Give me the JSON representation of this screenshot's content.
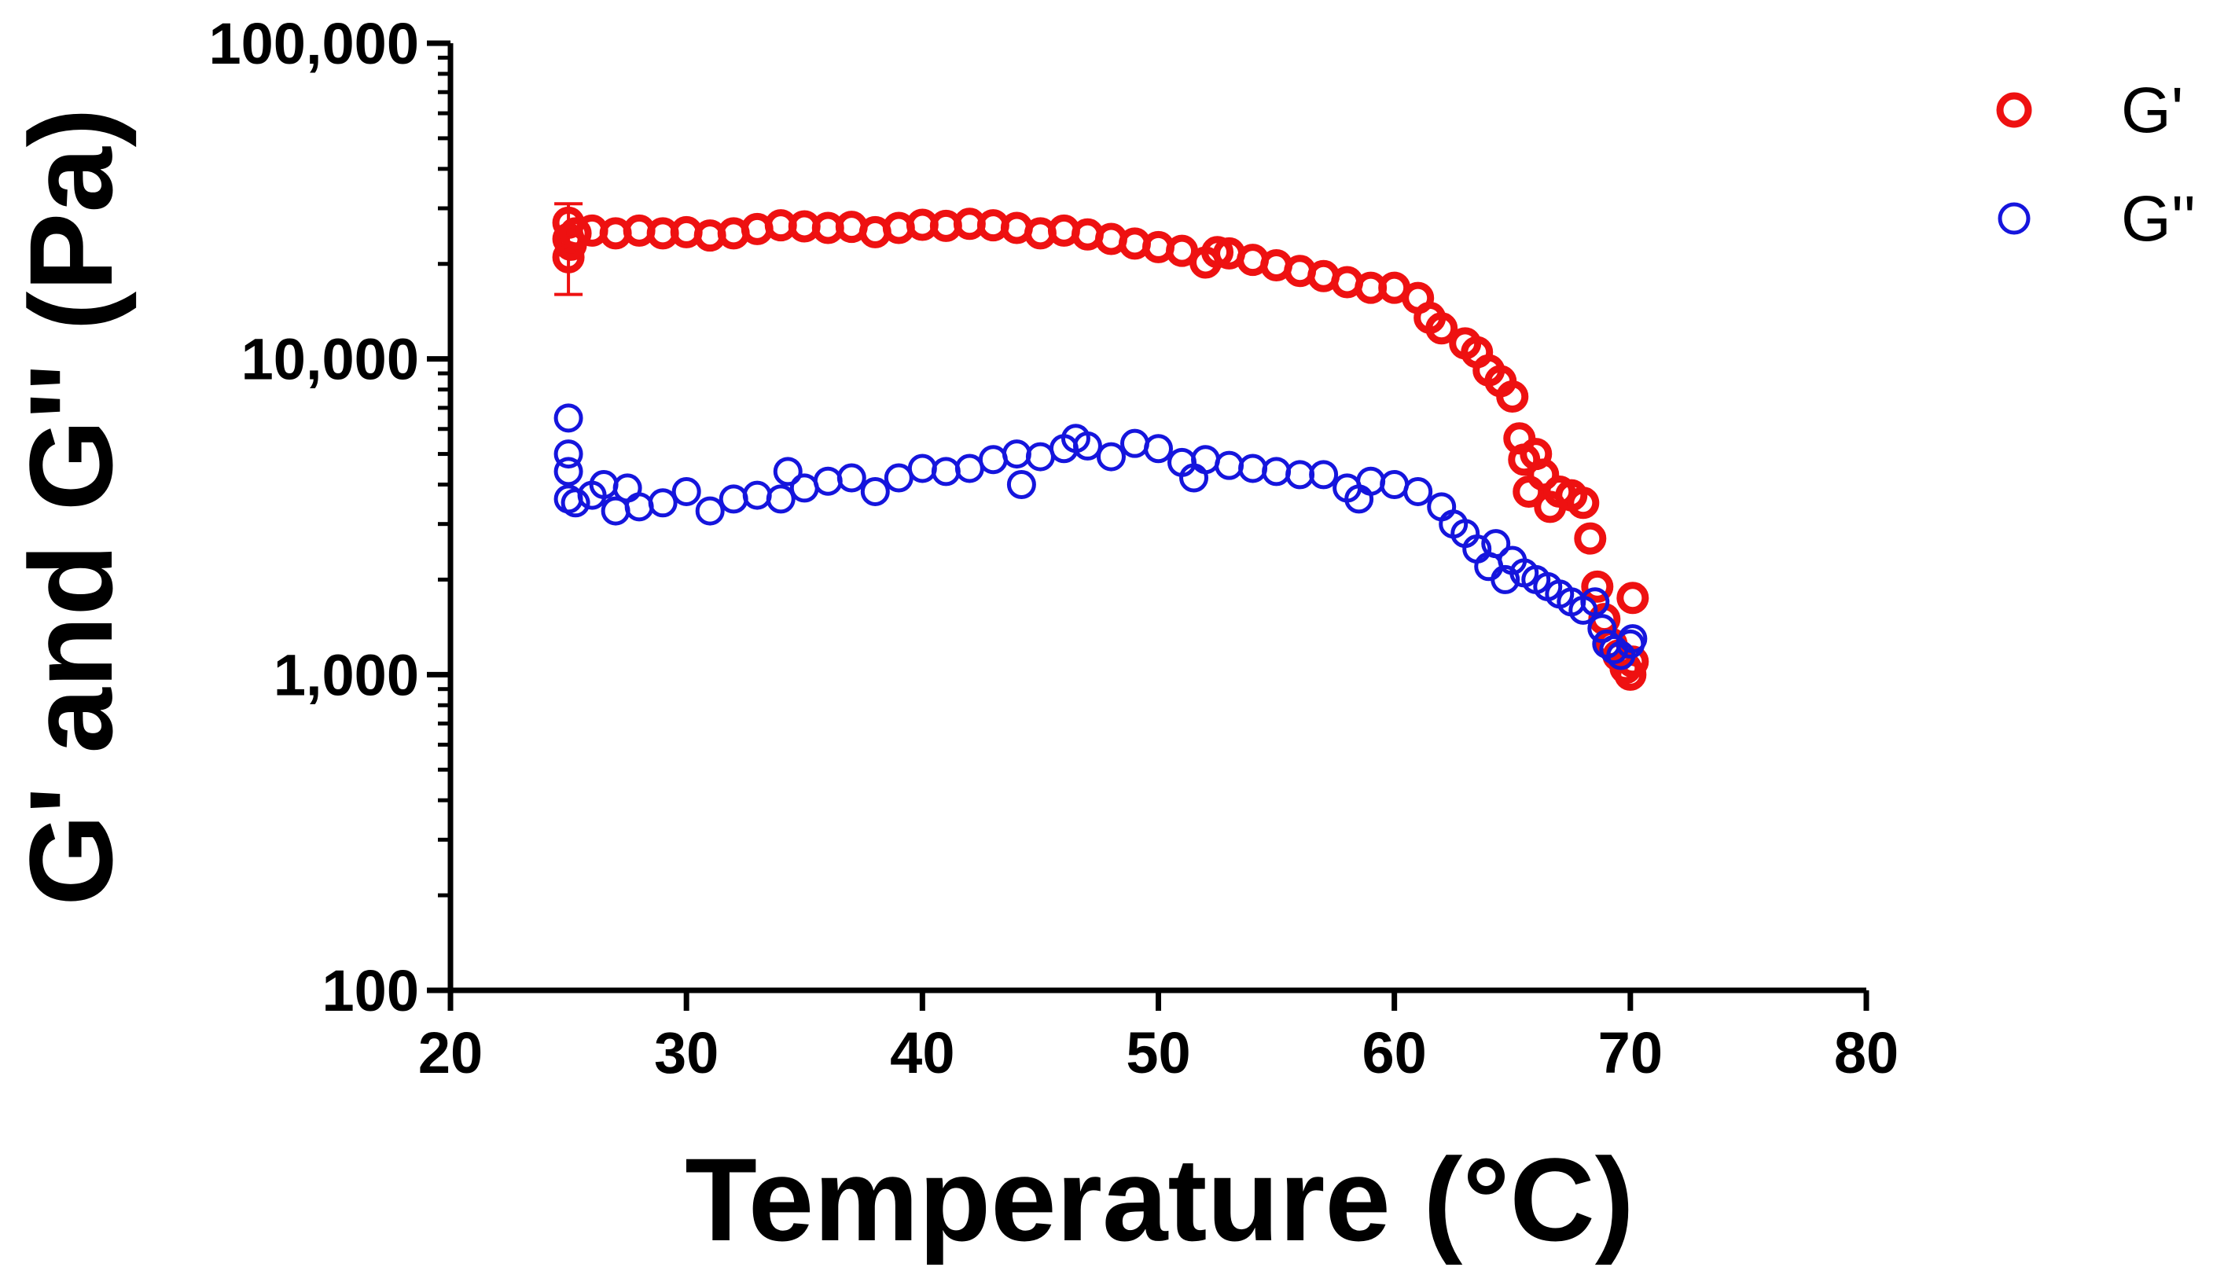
{
  "chart_data": {
    "type": "scatter",
    "title": "",
    "xlabel": "Temperature (°C)",
    "ylabel": "G' and G'' (Pa)",
    "xlim": [
      20,
      80
    ],
    "ylim": [
      100,
      100000
    ],
    "yscale": "log",
    "x_ticks": [
      20,
      30,
      40,
      50,
      60,
      70,
      80
    ],
    "x_tick_labels": [
      "20",
      "30",
      "40",
      "50",
      "60",
      "70",
      "80"
    ],
    "y_ticks": [
      100,
      1000,
      10000,
      100000
    ],
    "y_tick_labels": [
      "100",
      "1,000",
      "10,000",
      "100,000"
    ],
    "grid": false,
    "legend": "top-right",
    "series": [
      {
        "name": "G'",
        "color": "#ee1111",
        "marker": "open-circle",
        "points": [
          [
            25.0,
            24000
          ],
          [
            25.0,
            21000
          ],
          [
            25.0,
            27000
          ],
          [
            25.1,
            23000
          ],
          [
            25.3,
            25000
          ],
          [
            26,
            25500
          ],
          [
            27,
            25000
          ],
          [
            28,
            25500
          ],
          [
            29,
            25000
          ],
          [
            30,
            25200
          ],
          [
            31,
            24600
          ],
          [
            32,
            25000
          ],
          [
            33,
            25800
          ],
          [
            34,
            26500
          ],
          [
            35,
            26300
          ],
          [
            36,
            26000
          ],
          [
            37,
            26200
          ],
          [
            38,
            25200
          ],
          [
            39,
            26000
          ],
          [
            40,
            26600
          ],
          [
            41,
            26400
          ],
          [
            42,
            26800
          ],
          [
            43,
            26500
          ],
          [
            44,
            26000
          ],
          [
            45,
            25000
          ],
          [
            46,
            25500
          ],
          [
            47,
            24800
          ],
          [
            48,
            24000
          ],
          [
            49,
            23200
          ],
          [
            50,
            22600
          ],
          [
            51,
            22000
          ],
          [
            52,
            20200
          ],
          [
            52.5,
            21800
          ],
          [
            53,
            21600
          ],
          [
            54,
            20600
          ],
          [
            55,
            19800
          ],
          [
            56,
            19000
          ],
          [
            57,
            18300
          ],
          [
            58,
            17500
          ],
          [
            59,
            16800
          ],
          [
            60,
            16800
          ],
          [
            61,
            15600
          ],
          [
            61.5,
            13500
          ],
          [
            62,
            12500
          ],
          [
            63,
            11200
          ],
          [
            63.5,
            10500
          ],
          [
            64,
            9200
          ],
          [
            64.5,
            8500
          ],
          [
            65,
            7600
          ],
          [
            65.3,
            5600
          ],
          [
            65.5,
            4800
          ],
          [
            65.7,
            3800
          ],
          [
            66,
            5000
          ],
          [
            66.3,
            4300
          ],
          [
            66.6,
            3400
          ],
          [
            67,
            3800
          ],
          [
            67.5,
            3700
          ],
          [
            68,
            3500
          ],
          [
            68.3,
            2700
          ],
          [
            68.6,
            1900
          ],
          [
            68.9,
            1500
          ],
          [
            69.2,
            1250
          ],
          [
            69.5,
            1150
          ],
          [
            69.8,
            1050
          ],
          [
            70.0,
            1000
          ],
          [
            70.1,
            1100
          ],
          [
            70.1,
            1750
          ]
        ],
        "error_bar": {
          "x": 25.0,
          "low": 16000,
          "high": 31000
        }
      },
      {
        "name": "G''",
        "color": "#1515dd",
        "marker": "open-circle",
        "points": [
          [
            25.0,
            6500
          ],
          [
            25.0,
            5000
          ],
          [
            25.0,
            4400
          ],
          [
            25.0,
            3600
          ],
          [
            25.3,
            3500
          ],
          [
            26,
            3700
          ],
          [
            26.5,
            4000
          ],
          [
            27,
            3300
          ],
          [
            27.5,
            3900
          ],
          [
            28,
            3400
          ],
          [
            29,
            3500
          ],
          [
            30,
            3800
          ],
          [
            31,
            3300
          ],
          [
            32,
            3600
          ],
          [
            33,
            3700
          ],
          [
            34,
            3600
          ],
          [
            34.3,
            4400
          ],
          [
            35,
            3900
          ],
          [
            36,
            4100
          ],
          [
            37,
            4200
          ],
          [
            38,
            3800
          ],
          [
            39,
            4200
          ],
          [
            40,
            4500
          ],
          [
            41,
            4400
          ],
          [
            42,
            4500
          ],
          [
            43,
            4800
          ],
          [
            44,
            5000
          ],
          [
            44.2,
            4000
          ],
          [
            45,
            4900
          ],
          [
            46,
            5200
          ],
          [
            46.5,
            5600
          ],
          [
            47,
            5300
          ],
          [
            48,
            4900
          ],
          [
            49,
            5400
          ],
          [
            50,
            5200
          ],
          [
            51,
            4700
          ],
          [
            51.5,
            4200
          ],
          [
            52,
            4800
          ],
          [
            53,
            4600
          ],
          [
            54,
            4500
          ],
          [
            55,
            4400
          ],
          [
            56,
            4300
          ],
          [
            57,
            4300
          ],
          [
            58,
            3900
          ],
          [
            58.5,
            3600
          ],
          [
            59,
            4100
          ],
          [
            60,
            4000
          ],
          [
            61,
            3800
          ],
          [
            62,
            3400
          ],
          [
            62.5,
            3000
          ],
          [
            63,
            2800
          ],
          [
            63.5,
            2500
          ],
          [
            64,
            2200
          ],
          [
            64.3,
            2600
          ],
          [
            64.7,
            2000
          ],
          [
            65,
            2300
          ],
          [
            65.5,
            2100
          ],
          [
            66,
            2000
          ],
          [
            66.5,
            1900
          ],
          [
            67,
            1800
          ],
          [
            67.5,
            1700
          ],
          [
            68,
            1600
          ],
          [
            68.5,
            1700
          ],
          [
            68.8,
            1400
          ],
          [
            69.0,
            1250
          ],
          [
            69.3,
            1200
          ],
          [
            69.6,
            1150
          ],
          [
            70.0,
            1250
          ],
          [
            70.1,
            1300
          ]
        ]
      }
    ]
  }
}
